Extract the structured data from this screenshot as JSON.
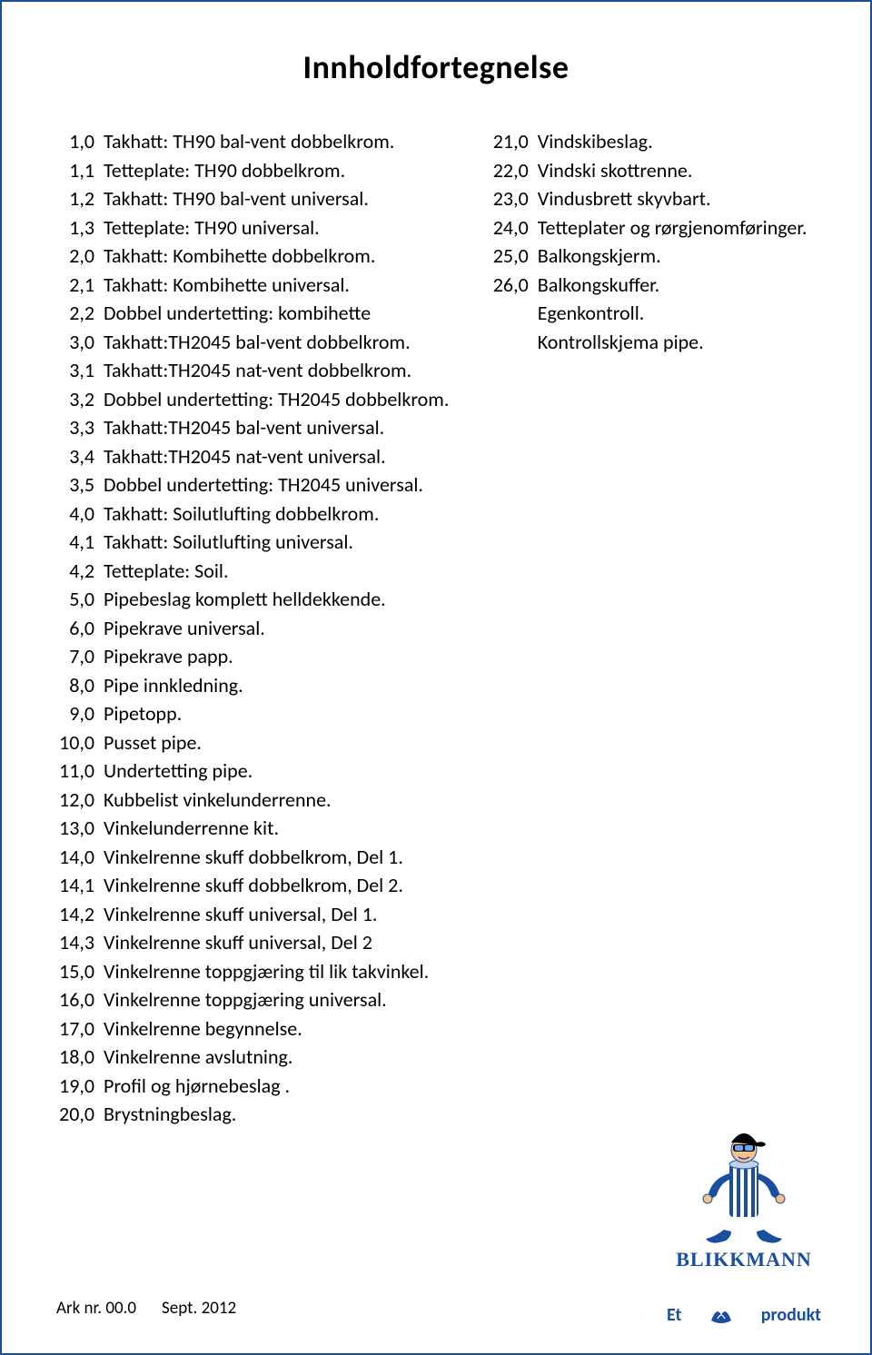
{
  "title": "Innholdfortegnelse",
  "border_color": "#1a4ea0",
  "background_color": "#ffffff",
  "text_color": "#000000",
  "font_size_body": 22,
  "font_size_title": 36,
  "line_height": 31.5,
  "left_column": [
    {
      "num": "1,0",
      "text": "Takhatt: TH90 bal-vent dobbelkrom."
    },
    {
      "num": "1,1",
      "text": "Tetteplate: TH90 dobbelkrom."
    },
    {
      "num": "1,2",
      "text": "Takhatt: TH90 bal-vent universal."
    },
    {
      "num": "1,3",
      "text": "Tetteplate: TH90 universal."
    },
    {
      "num": "2,0",
      "text": "Takhatt: Kombihette dobbelkrom."
    },
    {
      "num": "2,1",
      "text": "Takhatt: Kombihette universal."
    },
    {
      "num": "2,2",
      "text": "Dobbel undertetting: kombihette"
    },
    {
      "num": "3,0",
      "text": "Takhatt:TH2045 bal-vent dobbelkrom."
    },
    {
      "num": "3,1",
      "text": "Takhatt:TH2045 nat-vent dobbelkrom."
    },
    {
      "num": "3,2",
      "text": "Dobbel undertetting: TH2045 dobbelkrom."
    },
    {
      "num": "3,3",
      "text": "Takhatt:TH2045 bal-vent universal."
    },
    {
      "num": "3,4",
      "text": "Takhatt:TH2045 nat-vent universal."
    },
    {
      "num": "3,5",
      "text": "Dobbel undertetting: TH2045 universal."
    },
    {
      "num": "4,0",
      "text": "Takhatt: Soilutlufting dobbelkrom."
    },
    {
      "num": "4,1",
      "text": "Takhatt: Soilutlufting universal."
    },
    {
      "num": "4,2",
      "text": "Tetteplate: Soil."
    },
    {
      "num": "5,0",
      "text": "Pipebeslag komplett helldekkende."
    },
    {
      "num": "6,0",
      "text": "Pipekrave universal."
    },
    {
      "num": "7,0",
      "text": "Pipekrave papp."
    },
    {
      "num": "8,0",
      "text": "Pipe innkledning."
    },
    {
      "num": "9,0",
      "text": "Pipetopp."
    },
    {
      "num": "10,0",
      "text": "Pusset pipe."
    },
    {
      "num": "11,0",
      "text": "Undertetting pipe."
    },
    {
      "num": "12,0",
      "text": "Kubbelist vinkelunderrenne."
    },
    {
      "num": "13,0",
      "text": "Vinkelunderrenne kit."
    },
    {
      "num": "14,0",
      "text": "Vinkelrenne skuff dobbelkrom, Del 1."
    },
    {
      "num": "14,1",
      "text": "Vinkelrenne skuff dobbelkrom, Del 2."
    },
    {
      "num": "14,2",
      "text": "Vinkelrenne skuff universal, Del 1."
    },
    {
      "num": "14,3",
      "text": "Vinkelrenne skuff universal, Del 2"
    },
    {
      "num": "15,0",
      "text": "Vinkelrenne toppgjæring til lik takvinkel."
    },
    {
      "num": "16,0",
      "text": "Vinkelrenne toppgjæring universal."
    },
    {
      "num": "17,0",
      "text": "Vinkelrenne begynnelse."
    },
    {
      "num": "18,0",
      "text": "Vinkelrenne avslutning."
    },
    {
      "num": "19,0",
      "text": "Profil og hjørnebeslag ."
    },
    {
      "num": "20,0",
      "text": "Brystningbeslag."
    }
  ],
  "right_column": [
    {
      "num": "21,0",
      "text": "Vindskibeslag."
    },
    {
      "num": "22,0",
      "text": "Vindski skottrenne."
    },
    {
      "num": "23,0",
      "text": "Vindusbrett skyvbart."
    },
    {
      "num": "24,0",
      "text": "Tetteplater og rørgjenomføringer."
    },
    {
      "num": "25,0",
      "text": "Balkongskjerm."
    },
    {
      "num": "26,0",
      "text": "Balkongskuffer."
    },
    {
      "num": "",
      "text": "Egenkontroll."
    },
    {
      "num": "",
      "text": "Kontrollskjema pipe."
    }
  ],
  "footer": {
    "sheet_label": "Ark  nr. 00.0",
    "date": "Sept. 2012"
  },
  "logo": {
    "brand": "BLIKKMANN",
    "tagline_prefix": "Et",
    "tagline_suffix": "produkt",
    "color_primary": "#1a4ea0",
    "color_stripe": "#ffffff",
    "color_skin": "#f2c28c",
    "color_black": "#000000"
  }
}
